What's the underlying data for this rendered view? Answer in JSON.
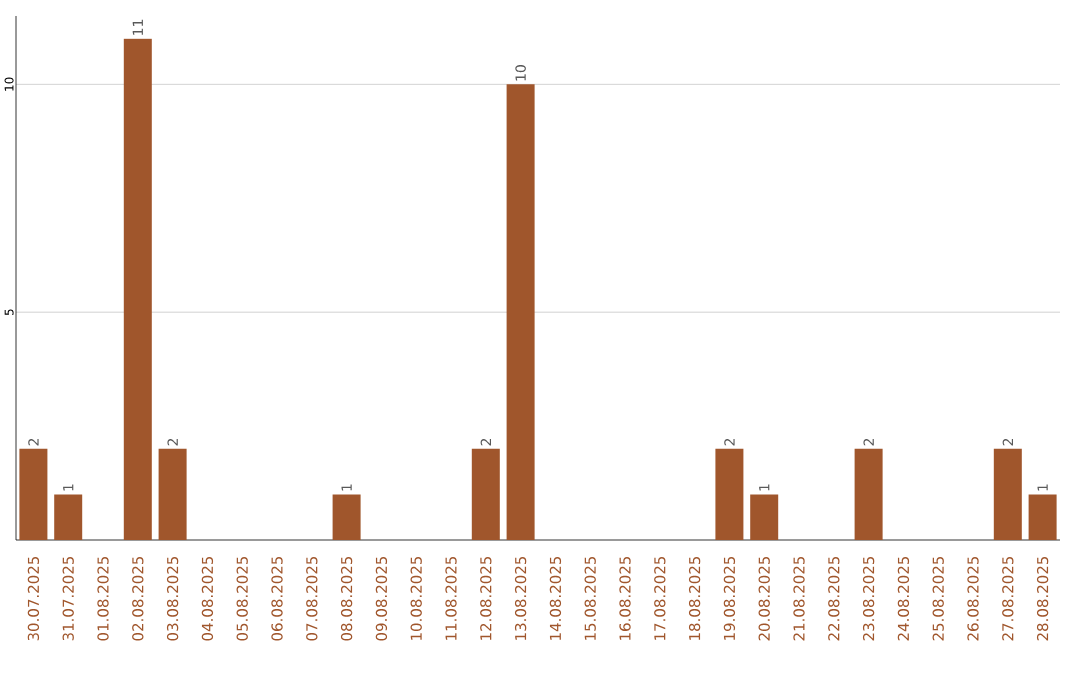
{
  "chart_data": {
    "type": "bar",
    "categories": [
      "30.07.2025",
      "31.07.2025",
      "01.08.2025",
      "02.08.2025",
      "03.08.2025",
      "04.08.2025",
      "05.08.2025",
      "06.08.2025",
      "07.08.2025",
      "08.08.2025",
      "09.08.2025",
      "10.08.2025",
      "11.08.2025",
      "12.08.2025",
      "13.08.2025",
      "14.08.2025",
      "15.08.2025",
      "16.08.2025",
      "17.08.2025",
      "18.08.2025",
      "19.08.2025",
      "20.08.2025",
      "21.08.2025",
      "22.08.2025",
      "23.08.2025",
      "24.08.2025",
      "25.08.2025",
      "26.08.2025",
      "27.08.2025",
      "28.08.2025"
    ],
    "values": [
      2,
      1,
      0,
      11,
      2,
      0,
      0,
      0,
      0,
      1,
      0,
      0,
      0,
      2,
      10,
      0,
      0,
      0,
      0,
      0,
      2,
      1,
      0,
      0,
      2,
      0,
      0,
      0,
      2,
      1
    ],
    "value_labels": [
      "2",
      "1",
      null,
      "11",
      "2",
      null,
      null,
      null,
      null,
      "1",
      null,
      null,
      null,
      "2",
      "10",
      null,
      null,
      null,
      null,
      null,
      "2",
      "1",
      null,
      null,
      "2",
      null,
      null,
      null,
      "2",
      "1"
    ],
    "color": "#a0562c",
    "ylim": [
      0,
      11.5
    ],
    "yticks": [
      5,
      10
    ],
    "grid": "y"
  }
}
